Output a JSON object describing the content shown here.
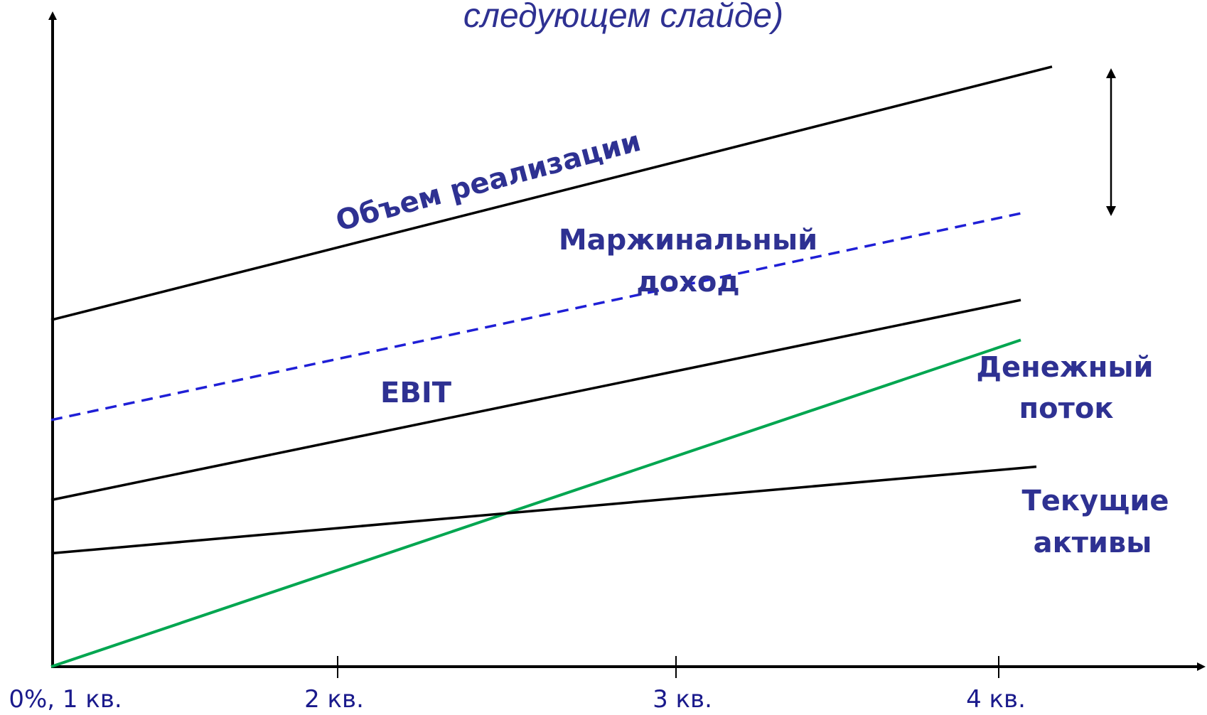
{
  "title": "следующем слайде)",
  "chart_data": {
    "type": "line",
    "title": "следующем слайде)",
    "xlabel": "",
    "ylabel": "",
    "categories": [
      "0%, 1 кв.",
      "2 кв.",
      "3 кв.",
      "4 кв."
    ],
    "xlim": [
      0,
      3.3
    ],
    "ylim": [
      0,
      10
    ],
    "grid": false,
    "series": [
      {
        "name": "Объем реализации",
        "x": [
          0,
          3.2
        ],
        "values": [
          5.2,
          9.0
        ],
        "color": "#000000",
        "dashed": false
      },
      {
        "name": "Маржинальный доход",
        "x": [
          0,
          3.1
        ],
        "values": [
          3.7,
          6.8
        ],
        "color": "#1f1fd6",
        "dashed": true
      },
      {
        "name": "EBIT",
        "x": [
          0,
          3.1
        ],
        "values": [
          2.5,
          5.5
        ],
        "color": "#000000",
        "dashed": false
      },
      {
        "name": "Денежный поток",
        "x": [
          0,
          3.1
        ],
        "values": [
          0.0,
          4.9
        ],
        "color": "#00a650",
        "dashed": false
      },
      {
        "name": "Текущие активы",
        "x": [
          0,
          3.15
        ],
        "values": [
          1.7,
          3.0
        ],
        "color": "#000000",
        "dashed": false
      }
    ]
  },
  "labels": {
    "sales": "Объем реализации",
    "margin_line1": "Маржинальный",
    "margin_line2": "доход",
    "ebit": "EBIT",
    "cash_line1": "Денежный",
    "cash_line2": "поток",
    "assets_line1": "Текущие",
    "assets_line2": "активы"
  },
  "colors": {
    "label_text": "#2e3192",
    "axis": "#000000",
    "dashed_series": "#1f1fd6",
    "green_series": "#00a650"
  }
}
